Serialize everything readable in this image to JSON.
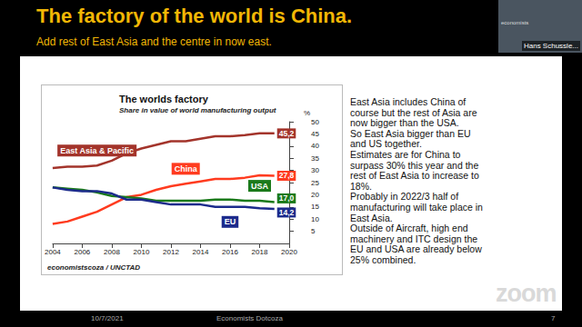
{
  "slide": {
    "title": "The factory of the world is China.",
    "subtitle": "Add rest of East Asia and the centre in now east.",
    "presenter": "Hans Schussle...",
    "presenter_logo": "economists",
    "notes": [
      "East Asia includes China of",
      "course but the rest of Asia are",
      "now bigger than the USA.",
      "So East Asia bigger than EU",
      "and US together.",
      "Estimates are for China to",
      "surpass 30% this year and the",
      "rest of East Asia to increase to",
      "18%.",
      "Probably in 2022/3 half of",
      "manufacturing will take place in",
      "East Asia.",
      "Outside of Aircraft, high end",
      "machinery and ITC design the",
      "EU and USA are already below",
      "25% combined."
    ],
    "watermark": "zoom",
    "footer": {
      "date": "10/7/2021",
      "center": "Economists Dotcoza",
      "page": "7"
    }
  },
  "chart_data": {
    "type": "line",
    "title": "The worlds factory",
    "subtitle": "Share in value of world manufacturing output",
    "source": "economistscoza / UNCTAD",
    "y_label": "%",
    "x": [
      2004,
      2005,
      2006,
      2007,
      2008,
      2009,
      2010,
      2011,
      2012,
      2013,
      2014,
      2015,
      2016,
      2017,
      2018,
      2019
    ],
    "xlim": [
      2004,
      2020
    ],
    "xticks": [
      2004,
      2006,
      2008,
      2010,
      2012,
      2014,
      2016,
      2018,
      2020
    ],
    "ylim": [
      0,
      50
    ],
    "yticks": [
      5,
      10,
      15,
      20,
      25,
      30,
      35,
      40,
      45,
      50
    ],
    "grid": false,
    "series": [
      {
        "name": "East Asia & Pacific",
        "color": "#a3342b",
        "end_label": "45,2",
        "values": [
          31,
          31.5,
          31.5,
          32,
          34,
          37,
          39,
          40.5,
          42,
          42,
          43,
          44,
          44,
          44.5,
          45.2,
          45.2
        ]
      },
      {
        "name": "China",
        "color": "#ff3b1f",
        "end_label": "27,8",
        "values": [
          8,
          9,
          11,
          13,
          16,
          19,
          20,
          22,
          23.5,
          24.5,
          25.5,
          26.5,
          26.5,
          27,
          28,
          27.8
        ]
      },
      {
        "name": "USA",
        "color": "#1b7a1b",
        "end_label": "17,0",
        "values": [
          23,
          22.5,
          22,
          21,
          19.5,
          19,
          18.5,
          17.5,
          17.5,
          17.5,
          17.5,
          18,
          18,
          17.5,
          17.5,
          17.0
        ]
      },
      {
        "name": "EU",
        "color": "#1c2b8c",
        "end_label": "14,2",
        "values": [
          23,
          22,
          21.5,
          21.5,
          20.5,
          18,
          18,
          17,
          16,
          16,
          16,
          15,
          15,
          15,
          14.5,
          14.2
        ]
      }
    ]
  }
}
